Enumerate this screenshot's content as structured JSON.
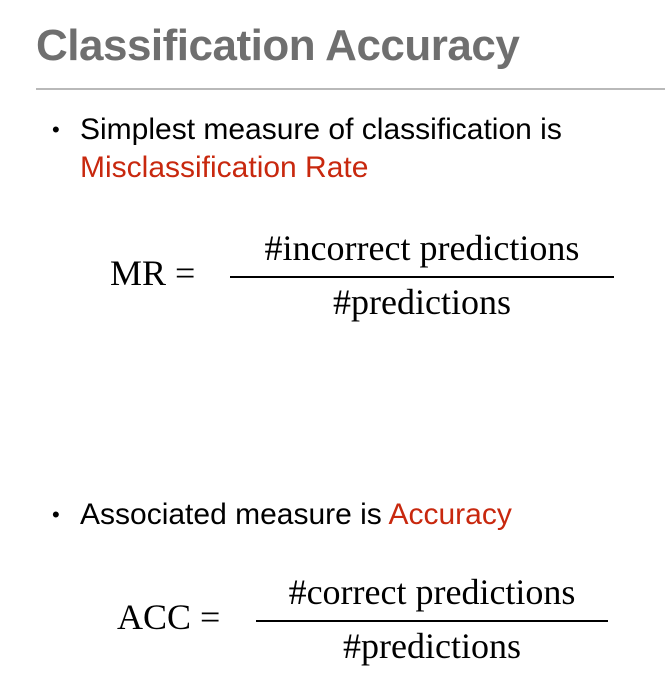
{
  "slide": {
    "title": "Classification Accuracy",
    "accent_color": "#c8280e",
    "title_color": "#6f6f6f"
  },
  "bullets": [
    {
      "symbol": "•",
      "text": "Simplest measure of classification is",
      "highlight": "Misclassification Rate"
    },
    {
      "symbol": "•",
      "text": "Associated measure is ",
      "highlight": "Accuracy"
    }
  ],
  "equations": {
    "mr": {
      "lhs": "MR =",
      "numerator": "#incorrect predictions",
      "denominator": "#predictions"
    },
    "acc": {
      "lhs": "ACC =",
      "numerator": "#correct predictions",
      "denominator": "#predictions"
    }
  }
}
